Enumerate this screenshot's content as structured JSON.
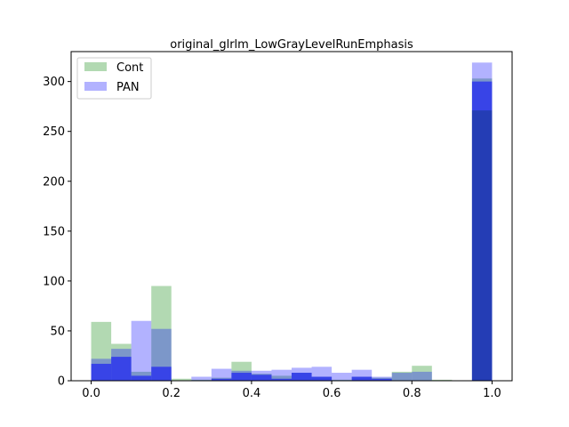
{
  "chart_data": {
    "type": "bar",
    "title": "original_glrlm_LowGrayLevelRunEmphasis",
    "xlabel": "",
    "ylabel": "",
    "xlim": [
      -0.05,
      1.05
    ],
    "ylim": [
      0,
      330
    ],
    "xticks": [
      "0.0",
      "0.2",
      "0.4",
      "0.6",
      "0.8",
      "1.0"
    ],
    "yticks": [
      "0",
      "50",
      "100",
      "150",
      "200",
      "250",
      "300"
    ],
    "legend_position": "upper-left",
    "grid": false,
    "colors": {
      "Cont": "#008000",
      "PAN": "#0000ff"
    },
    "series": [
      {
        "name": "Cont",
        "color": "#008000",
        "opacity": 0.3,
        "bins": [
          {
            "x0": 0.0,
            "x1": 0.05,
            "value": 59
          },
          {
            "x0": 0.05,
            "x1": 0.1,
            "value": 37
          },
          {
            "x0": 0.1,
            "x1": 0.15,
            "value": 9
          },
          {
            "x0": 0.15,
            "x1": 0.2,
            "value": 95
          },
          {
            "x0": 0.2,
            "x1": 0.25,
            "value": 2
          },
          {
            "x0": 0.25,
            "x1": 0.3,
            "value": 1
          },
          {
            "x0": 0.3,
            "x1": 0.35,
            "value": 3
          },
          {
            "x0": 0.35,
            "x1": 0.4,
            "value": 19
          },
          {
            "x0": 0.4,
            "x1": 0.45,
            "value": 7
          },
          {
            "x0": 0.45,
            "x1": 0.5,
            "value": 5
          },
          {
            "x0": 0.5,
            "x1": 0.55,
            "value": 8
          },
          {
            "x0": 0.55,
            "x1": 0.6,
            "value": 4
          },
          {
            "x0": 0.6,
            "x1": 0.65,
            "value": 1
          },
          {
            "x0": 0.65,
            "x1": 0.7,
            "value": 4
          },
          {
            "x0": 0.7,
            "x1": 0.75,
            "value": 3
          },
          {
            "x0": 0.75,
            "x1": 0.8,
            "value": 9
          },
          {
            "x0": 0.8,
            "x1": 0.85,
            "value": 15
          },
          {
            "x0": 0.85,
            "x1": 0.9,
            "value": 1
          },
          {
            "x0": 0.9,
            "x1": 0.95,
            "value": 0
          },
          {
            "x0": 0.95,
            "x1": 1.0,
            "value": 303
          }
        ]
      },
      {
        "name": "PAN",
        "color": "#0000ff",
        "opacity": 0.3,
        "bins": [
          {
            "x0": 0.0,
            "x1": 0.05,
            "value": 22
          },
          {
            "x0": 0.05,
            "x1": 0.1,
            "value": 32
          },
          {
            "x0": 0.1,
            "x1": 0.15,
            "value": 60
          },
          {
            "x0": 0.15,
            "x1": 0.2,
            "value": 52
          },
          {
            "x0": 0.2,
            "x1": 0.25,
            "value": 0
          },
          {
            "x0": 0.25,
            "x1": 0.3,
            "value": 4
          },
          {
            "x0": 0.3,
            "x1": 0.35,
            "value": 12
          },
          {
            "x0": 0.35,
            "x1": 0.4,
            "value": 10
          },
          {
            "x0": 0.4,
            "x1": 0.45,
            "value": 10
          },
          {
            "x0": 0.45,
            "x1": 0.5,
            "value": 11
          },
          {
            "x0": 0.5,
            "x1": 0.55,
            "value": 13
          },
          {
            "x0": 0.55,
            "x1": 0.6,
            "value": 14
          },
          {
            "x0": 0.6,
            "x1": 0.65,
            "value": 8
          },
          {
            "x0": 0.65,
            "x1": 0.7,
            "value": 11
          },
          {
            "x0": 0.7,
            "x1": 0.75,
            "value": 4
          },
          {
            "x0": 0.75,
            "x1": 0.8,
            "value": 8
          },
          {
            "x0": 0.8,
            "x1": 0.85,
            "value": 9
          },
          {
            "x0": 0.85,
            "x1": 0.9,
            "value": 0
          },
          {
            "x0": 0.9,
            "x1": 0.95,
            "value": 0
          },
          {
            "x0": 0.95,
            "x1": 1.0,
            "value": 319
          }
        ]
      },
      {
        "name": "",
        "color": "#0000ff",
        "opacity": 0.55,
        "bins": [
          {
            "x0": 0.0,
            "x1": 0.05,
            "value": 17
          },
          {
            "x0": 0.05,
            "x1": 0.1,
            "value": 24
          },
          {
            "x0": 0.1,
            "x1": 0.15,
            "value": 5
          },
          {
            "x0": 0.15,
            "x1": 0.2,
            "value": 14
          },
          {
            "x0": 0.2,
            "x1": 0.25,
            "value": 0
          },
          {
            "x0": 0.25,
            "x1": 0.3,
            "value": 0
          },
          {
            "x0": 0.3,
            "x1": 0.35,
            "value": 2
          },
          {
            "x0": 0.35,
            "x1": 0.4,
            "value": 8
          },
          {
            "x0": 0.4,
            "x1": 0.45,
            "value": 6
          },
          {
            "x0": 0.45,
            "x1": 0.5,
            "value": 2
          },
          {
            "x0": 0.5,
            "x1": 0.55,
            "value": 8
          },
          {
            "x0": 0.55,
            "x1": 0.6,
            "value": 4
          },
          {
            "x0": 0.6,
            "x1": 0.65,
            "value": 0
          },
          {
            "x0": 0.65,
            "x1": 0.7,
            "value": 4
          },
          {
            "x0": 0.7,
            "x1": 0.75,
            "value": 2
          },
          {
            "x0": 0.75,
            "x1": 0.8,
            "value": 0
          },
          {
            "x0": 0.8,
            "x1": 0.85,
            "value": 0
          },
          {
            "x0": 0.85,
            "x1": 0.9,
            "value": 0
          },
          {
            "x0": 0.9,
            "x1": 0.95,
            "value": 0
          },
          {
            "x0": 0.95,
            "x1": 1.0,
            "value": 300
          }
        ]
      },
      {
        "name": "",
        "color": "#1a3a99",
        "opacity": 0.65,
        "bins": [
          {
            "x0": 0.95,
            "x1": 1.0,
            "value": 271
          }
        ]
      }
    ]
  }
}
